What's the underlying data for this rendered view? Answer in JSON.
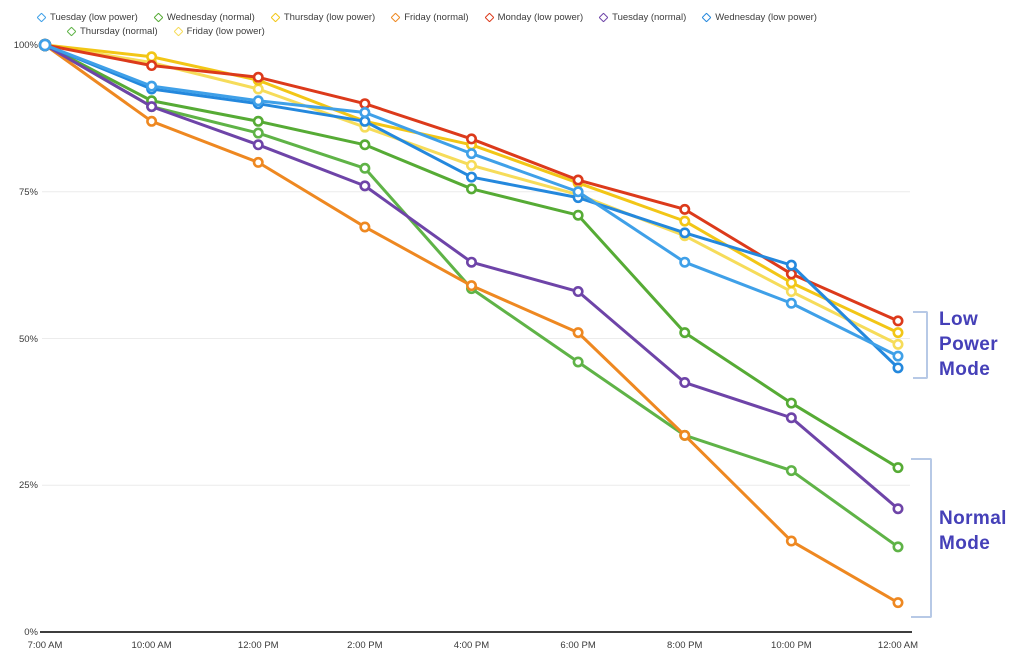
{
  "chart_data": {
    "type": "line",
    "categories": [
      "7:00 AM",
      "10:00 AM",
      "12:00 PM",
      "2:00 PM",
      "4:00 PM",
      "6:00 PM",
      "8:00 PM",
      "10:00 PM",
      "12:00 AM"
    ],
    "series": [
      {
        "name": "Tuesday (low power)",
        "color": "#3fa0e8",
        "values": [
          100,
          93,
          90.5,
          88.5,
          81.5,
          75,
          63,
          56,
          47
        ]
      },
      {
        "name": "Wednesday (normal)",
        "color": "#56ab35",
        "values": [
          100,
          90.5,
          87,
          83,
          75.5,
          71,
          51,
          39,
          28
        ]
      },
      {
        "name": "Thursday (low power)",
        "color": "#f2c616",
        "values": [
          100,
          98,
          94,
          87,
          83,
          76.5,
          70,
          59.5,
          51
        ]
      },
      {
        "name": "Friday (normal)",
        "color": "#ee8821",
        "values": [
          100,
          87,
          80,
          69,
          59,
          51,
          33.5,
          15.5,
          5
        ]
      },
      {
        "name": "Monday (low power)",
        "color": "#dc3a1b",
        "values": [
          100,
          96.5,
          94.5,
          90,
          84,
          77,
          72,
          61,
          53
        ]
      },
      {
        "name": "Tuesday (normal)",
        "color": "#6e44a8",
        "values": [
          100,
          89.5,
          83,
          76,
          63,
          58,
          42.5,
          36.5,
          21
        ]
      },
      {
        "name": "Wednesday (low power)",
        "color": "#2488dd",
        "values": [
          100,
          92.5,
          90,
          87,
          77.5,
          74,
          68,
          62.5,
          45
        ]
      },
      {
        "name": "Thursday (normal)",
        "color": "#5fb347",
        "values": [
          100,
          89.5,
          85,
          79,
          58.5,
          46,
          33.5,
          27.5,
          14.5
        ]
      },
      {
        "name": "Friday (low power)",
        "color": "#f6dc5a",
        "values": [
          100,
          97,
          92.5,
          86,
          79.5,
          74.5,
          67.5,
          58,
          49
        ]
      }
    ],
    "y_ticks": [
      {
        "label": "100%",
        "value": 100
      },
      {
        "label": "75%",
        "value": 75
      },
      {
        "label": "50%",
        "value": 50
      },
      {
        "label": "25%",
        "value": 25
      },
      {
        "label": "0%",
        "value": 0
      }
    ],
    "ylim": [
      0,
      100
    ],
    "grid_values": [
      75,
      50,
      25
    ],
    "legend_position": "top",
    "legend_wrap_after": 7,
    "marker": "open-circle",
    "draw_order": [
      7,
      3,
      1,
      5,
      8,
      2,
      4,
      6,
      0
    ]
  },
  "annotations": {
    "low_power_mode": {
      "lines": [
        "Low",
        "Power",
        "Mode"
      ]
    },
    "normal_mode": {
      "lines": [
        "Normal",
        "Mode"
      ]
    },
    "text_color": "#4540b8",
    "bracket_color": "#b7c9e6"
  }
}
